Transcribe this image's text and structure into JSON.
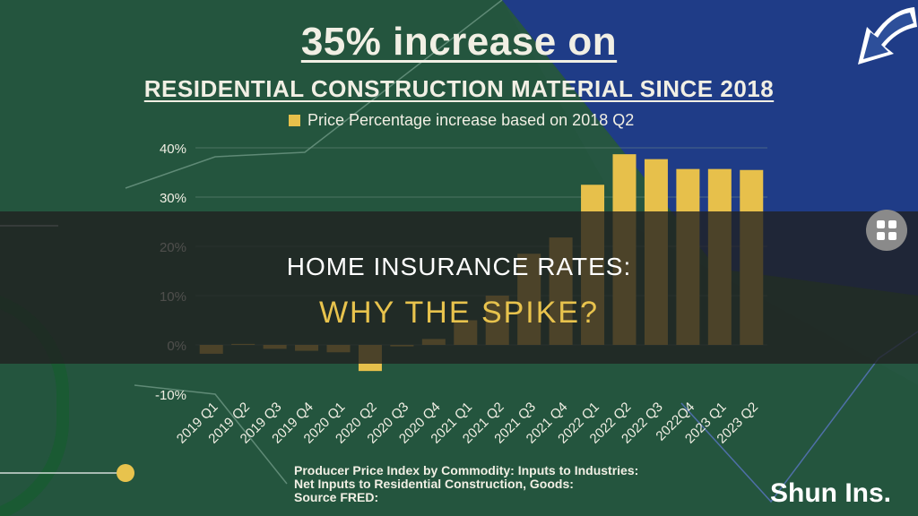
{
  "colors": {
    "background": "#24553e",
    "accent_blue": "#1f3c87",
    "bar": "#e7c04b",
    "text": "#f1efe4",
    "banner_highlight": "#e8c34d"
  },
  "header": {
    "title": "35% increase on",
    "subtitle": "RESIDENTIAL CONSTRUCTION MATERIAL SINCE 2018"
  },
  "legend": {
    "label": "Price Percentage increase based on 2018 Q2"
  },
  "chart_data": {
    "type": "bar",
    "legend": [
      "Price Percentage increase based on 2018 Q2"
    ],
    "categories": [
      "2019 Q1",
      "2019 Q2",
      "2019 Q3",
      "2019 Q4",
      "2020 Q1",
      "2020 Q2",
      "2020 Q3",
      "2020 Q4",
      "2021 Q1",
      "2021 Q2",
      "2021 Q3",
      "2021 Q4",
      "2022 Q1",
      "2022 Q2",
      "2022 Q3",
      "2022Q4",
      "2023 Q1",
      "2023 Q2"
    ],
    "values": [
      -1.8,
      0.2,
      -0.8,
      -1.2,
      -1.5,
      -5.3,
      -0.3,
      1.2,
      5,
      10,
      18.5,
      21.8,
      32.5,
      38.7,
      37.7,
      35.7,
      35.7,
      35.5
    ],
    "yticks": [
      "40%",
      "30%",
      "20%",
      "10%",
      "0%",
      "-10%"
    ],
    "ylim": [
      -10,
      40
    ],
    "grid": true
  },
  "banner": {
    "line1": "HOME INSURANCE RATES:",
    "line2": "WHY THE SPIKE?"
  },
  "source": {
    "line1": "Producer Price Index by Commodity: Inputs to Industries:",
    "line2": "Net Inputs to Residential Construction, Goods:",
    "line3": "Source FRED:"
  },
  "brand": "Shun Ins.",
  "icons": {
    "menu": "grid-menu-icon",
    "arrow": "curved-arrow-icon"
  }
}
